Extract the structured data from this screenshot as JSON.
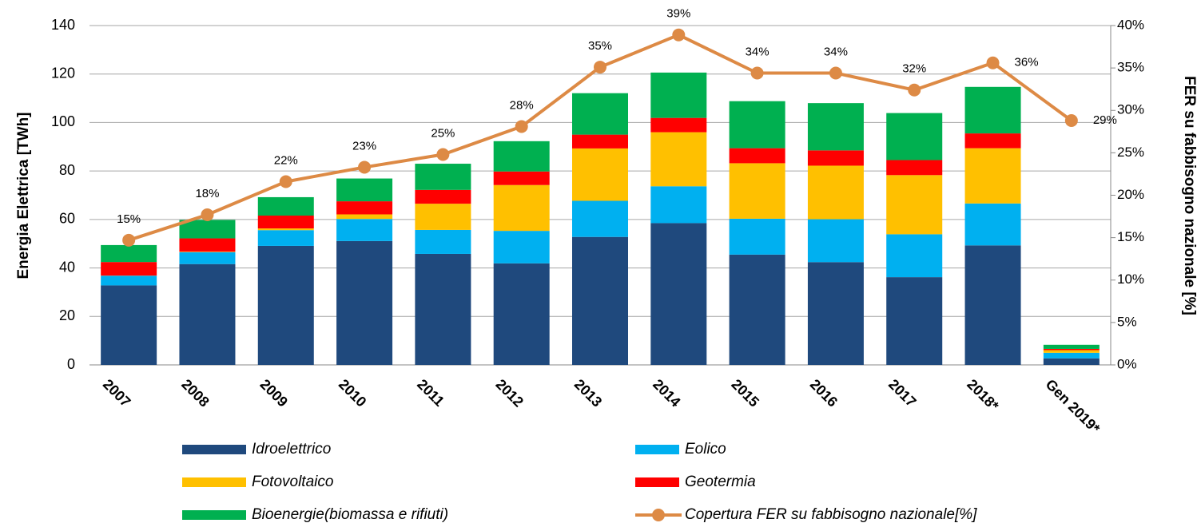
{
  "chart_data": {
    "type": "bar",
    "stacked": true,
    "categories": [
      "2007",
      "2008",
      "2009",
      "2010",
      "2011",
      "2012",
      "2013",
      "2014",
      "2015",
      "2016",
      "2017",
      "2018*",
      "Gen 2019*"
    ],
    "y_label": "Energia Elettrica [TWh]",
    "y2_label": "FER su fabbisogno nazionale [%]",
    "ylim": [
      0,
      140
    ],
    "yticks": [
      0,
      20,
      40,
      60,
      80,
      100,
      120,
      140
    ],
    "y2lim": [
      0,
      40
    ],
    "y2ticks": [
      {
        "value": 0,
        "label": "0%"
      },
      {
        "value": 5,
        "label": "5%"
      },
      {
        "value": 10,
        "label": "10%"
      },
      {
        "value": 15,
        "label": "15%"
      },
      {
        "value": 20,
        "label": "20%"
      },
      {
        "value": 25,
        "label": "25%"
      },
      {
        "value": 30,
        "label": "30%"
      },
      {
        "value": 35,
        "label": "35%"
      },
      {
        "value": 40,
        "label": "40%"
      }
    ],
    "grid": true,
    "series": [
      {
        "name": "Idroelettrico",
        "color": "#1f497d",
        "values": [
          32.8,
          41.6,
          49.1,
          51.1,
          45.8,
          41.9,
          52.8,
          58.5,
          45.5,
          42.4,
          36.2,
          49.3,
          2.7
        ]
      },
      {
        "name": "Eolico",
        "color": "#00b0f0",
        "values": [
          4.0,
          4.9,
          6.5,
          9.1,
          9.9,
          13.4,
          14.9,
          15.2,
          14.8,
          17.7,
          17.7,
          17.3,
          2.3
        ]
      },
      {
        "name": "Fotovoltaico",
        "color": "#ffc000",
        "values": [
          0.04,
          0.2,
          0.7,
          1.9,
          10.8,
          18.9,
          21.6,
          22.3,
          22.9,
          22.1,
          24.4,
          22.8,
          1.1
        ]
      },
      {
        "name": "Geotermia",
        "color": "#ff0000",
        "values": [
          5.6,
          5.5,
          5.3,
          5.4,
          5.7,
          5.6,
          5.7,
          5.9,
          6.2,
          6.3,
          6.2,
          6.1,
          0.5
        ]
      },
      {
        "name": "Bioenergie(biomassa e rifiuti)",
        "color": "#00b050",
        "values": [
          7.0,
          7.6,
          7.6,
          9.4,
          10.8,
          12.5,
          17.1,
          18.7,
          19.4,
          19.5,
          19.4,
          19.2,
          1.7
        ]
      },
      {
        "name": "Copertura FER su fabbisogno nazionale[%]",
        "color": "#dd8a45",
        "type": "line",
        "axis": "y2",
        "values": [
          14.7,
          17.7,
          21.6,
          23.3,
          24.8,
          28.1,
          35.1,
          38.9,
          34.4,
          34.4,
          32.4,
          35.6,
          28.8
        ],
        "value_labels": [
          "15%",
          "18%",
          "22%",
          "23%",
          "25%",
          "28%",
          "35%",
          "39%",
          "34%",
          "34%",
          "32%",
          "36%",
          "29%"
        ]
      }
    ]
  }
}
